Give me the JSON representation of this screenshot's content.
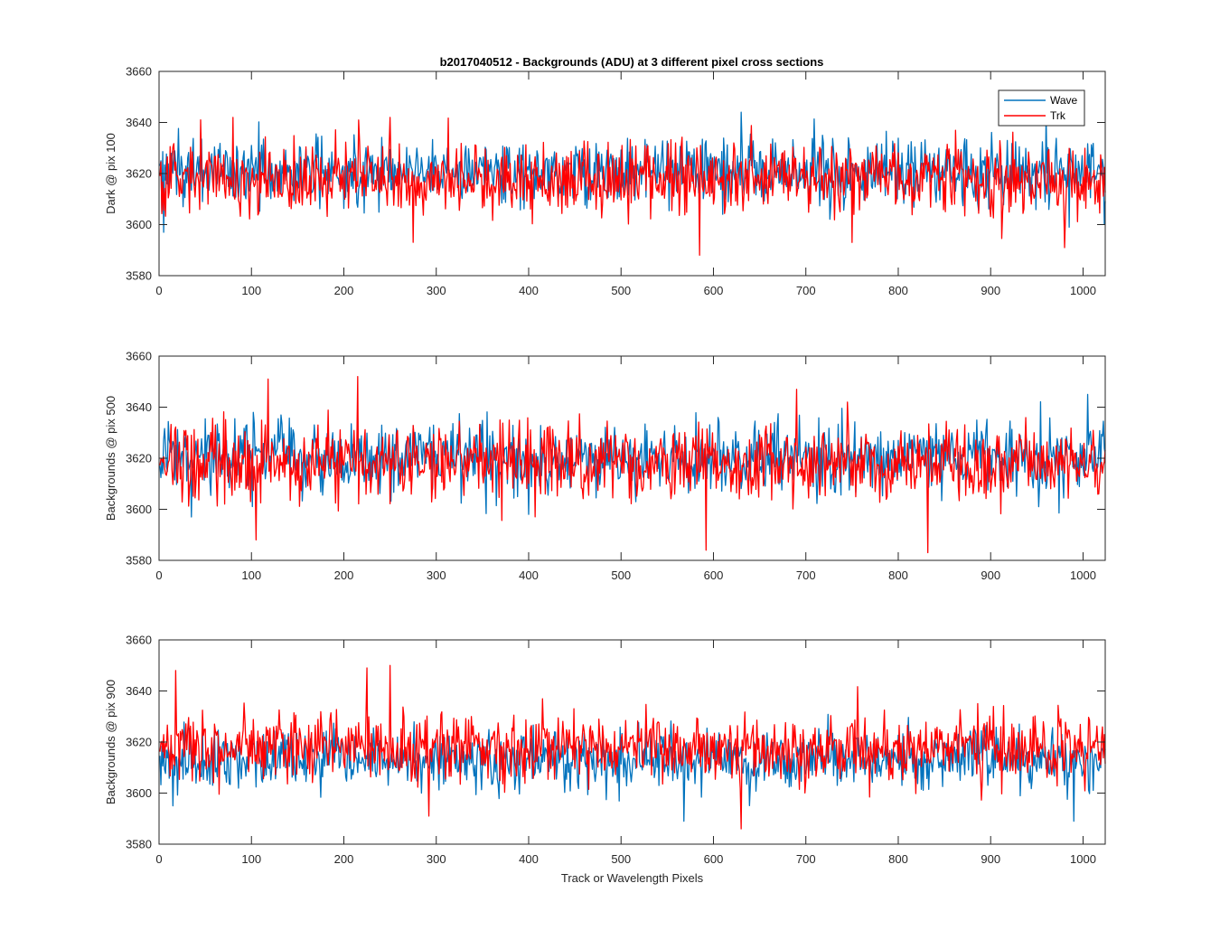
{
  "figure": {
    "title": "b2017040512 - Backgrounds (ADU) at 3 different pixel cross sections"
  },
  "chart_data": [
    {
      "type": "line",
      "title": "b2017040512 - Backgrounds (ADU) at 3 different pixel cross sections",
      "xlabel": "",
      "ylabel": "Dark @ pix 100",
      "xlim": [
        0,
        1024
      ],
      "ylim": [
        3580,
        3660
      ],
      "xticks": [
        0,
        100,
        200,
        300,
        400,
        500,
        600,
        700,
        800,
        900,
        1000
      ],
      "yticks": [
        3580,
        3600,
        3620,
        3640,
        3660
      ],
      "grid": false,
      "legend": {
        "visible": true,
        "placement": "top-right"
      },
      "x_range": [
        1,
        1024
      ],
      "series": [
        {
          "name": "Wave",
          "color": "#0072BD",
          "mean": 3621,
          "spread": 7.5,
          "notable_points": [
            [
              5,
              3597
            ],
            [
              630,
              3644
            ],
            [
              960,
              3643
            ],
            [
              985,
              3599
            ]
          ]
        },
        {
          "name": "Trk",
          "color": "#FF0000",
          "mean": 3618,
          "spread": 8,
          "notable_points": [
            [
              45,
              3641
            ],
            [
              80,
              3642
            ],
            [
              250,
              3642
            ],
            [
              585,
              3588
            ],
            [
              750,
              3593
            ],
            [
              980,
              3591
            ]
          ]
        }
      ]
    },
    {
      "type": "line",
      "xlabel": "",
      "ylabel": "Backgrounds @ pix 500",
      "xlim": [
        0,
        1024
      ],
      "ylim": [
        3580,
        3660
      ],
      "xticks": [
        0,
        100,
        200,
        300,
        400,
        500,
        600,
        700,
        800,
        900,
        1000
      ],
      "yticks": [
        3580,
        3600,
        3620,
        3640,
        3660
      ],
      "grid": false,
      "legend": {
        "visible": false
      },
      "x_range": [
        1,
        1024
      ],
      "series": [
        {
          "name": "Wave",
          "color": "#0072BD",
          "mean": 3620,
          "spread": 8,
          "notable_points": [
            [
              35,
              3597
            ],
            [
              400,
              3598
            ],
            [
              1005,
              3645
            ]
          ]
        },
        {
          "name": "Trk",
          "color": "#FF0000",
          "mean": 3618,
          "spread": 8.5,
          "notable_points": [
            [
              105,
              3588
            ],
            [
              118,
              3651
            ],
            [
              215,
              3652
            ],
            [
              592,
              3584
            ],
            [
              690,
              3647
            ],
            [
              832,
              3583
            ]
          ]
        }
      ]
    },
    {
      "type": "line",
      "xlabel": "Track or Wavelength Pixels",
      "ylabel": "Backgrounds @ pix 900",
      "xlim": [
        0,
        1024
      ],
      "ylim": [
        3580,
        3660
      ],
      "xticks": [
        0,
        100,
        200,
        300,
        400,
        500,
        600,
        700,
        800,
        900,
        1000
      ],
      "yticks": [
        3580,
        3600,
        3620,
        3640,
        3660
      ],
      "grid": false,
      "legend": {
        "visible": false
      },
      "x_range": [
        1,
        1024
      ],
      "series": [
        {
          "name": "Wave",
          "color": "#0072BD",
          "mean": 3613,
          "spread": 7,
          "notable_points": [
            [
              15,
              3595
            ],
            [
              568,
              3589
            ],
            [
              990,
              3589
            ]
          ]
        },
        {
          "name": "Trk",
          "color": "#FF0000",
          "mean": 3618,
          "spread": 8,
          "notable_points": [
            [
              18,
              3648
            ],
            [
              225,
              3649
            ],
            [
              250,
              3650
            ],
            [
              292,
              3591
            ],
            [
              630,
              3586
            ]
          ]
        }
      ]
    }
  ]
}
